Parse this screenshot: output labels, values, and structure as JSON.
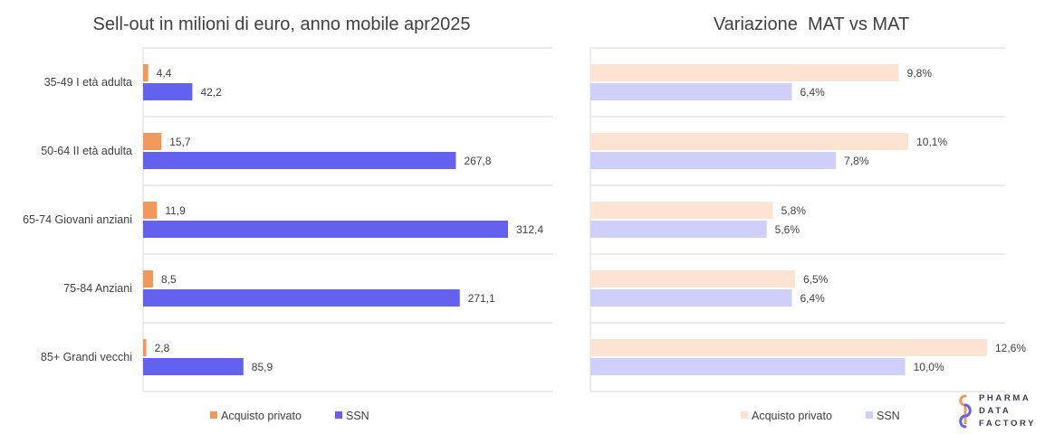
{
  "chart_data": [
    {
      "type": "bar",
      "orientation": "horizontal",
      "title": "Sell-out in milioni di euro, anno mobile apr2025",
      "categories": [
        "35-49 I età adulta",
        "50-64 II età adulta",
        "65-74 Giovani anziani",
        "75-84 Anziani",
        "85+ Grandi vecchi"
      ],
      "series": [
        {
          "name": "Acquisto privato",
          "color": "#F0995A",
          "values": [
            4.4,
            15.7,
            11.9,
            8.5,
            2.8
          ],
          "labels": [
            "4,4",
            "15,7",
            "11,9",
            "8,5",
            "2,8"
          ]
        },
        {
          "name": "SSN",
          "color": "#6361EE",
          "values": [
            42.2,
            267.8,
            312.4,
            271.1,
            85.9
          ],
          "labels": [
            "42,2",
            "267,8",
            "312,4",
            "271,1",
            "85,9"
          ]
        }
      ],
      "legend": "bottom",
      "grid": true
    },
    {
      "type": "bar",
      "orientation": "horizontal",
      "title": "Variazione  MAT vs MAT",
      "categories": [
        "35-49 I età adulta",
        "50-64 II età adulta",
        "65-74 Giovani anziani",
        "75-84 Anziani",
        "85+ Grandi vecchi"
      ],
      "series": [
        {
          "name": "Acquisto privato",
          "color": "#FCE3D2",
          "values": [
            9.8,
            10.1,
            5.8,
            6.5,
            12.6
          ],
          "labels": [
            "9,8%",
            "10,1%",
            "5,8%",
            "6,5%",
            "12,6%"
          ]
        },
        {
          "name": "SSN",
          "color": "#CFCFFA",
          "values": [
            6.4,
            7.8,
            5.6,
            6.4,
            10.0
          ],
          "labels": [
            "6,4%",
            "7,8%",
            "5,6%",
            "6,4%",
            "10,0%"
          ]
        }
      ],
      "legend": "bottom",
      "grid": true
    }
  ],
  "logo": {
    "line1": "PHARMA",
    "line2": "DATA",
    "line3": "FACTORY"
  }
}
